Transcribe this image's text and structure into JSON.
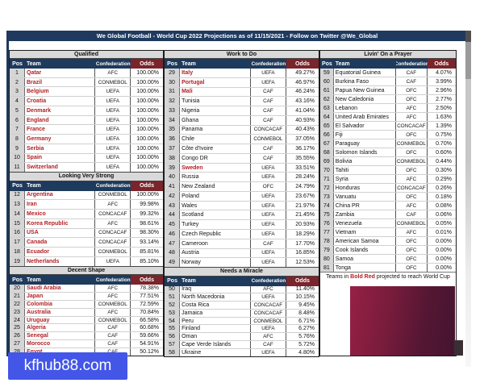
{
  "title_bar": {
    "text": "We Global Football - World Cup 2022 Projections as of 11/15/2021 - Follow on Twitter @We_Global"
  },
  "table_headers": {
    "pos": "Pos",
    "team": "Team",
    "confederation": "Confederation",
    "odds": "Odds"
  },
  "note": {
    "prefix": "Teams in",
    "highlight": "Bold Red",
    "suffix": "projected to reach World Cup"
  },
  "watermark": {
    "text": "kfhub88.com"
  },
  "colors": {
    "header_navy": "#1e3a5c",
    "odds_header_red": "#7a242b",
    "projected_team_red": "#b32025",
    "section_gray": "#d9d9d9",
    "watermark_blue": "#4356e8"
  },
  "tables": {
    "qualified": {
      "title": "Qualified",
      "rows": [
        {
          "pos": 1,
          "team": "Qatar",
          "confederation": "AFC",
          "odds": "100.00%",
          "projected": true
        },
        {
          "pos": 2,
          "team": "Brazil",
          "confederation": "CONMEBOL",
          "odds": "100.00%",
          "projected": true
        },
        {
          "pos": 3,
          "team": "Belgium",
          "confederation": "UEFA",
          "odds": "100.00%",
          "projected": true
        },
        {
          "pos": 4,
          "team": "Croatia",
          "confederation": "UEFA",
          "odds": "100.00%",
          "projected": true
        },
        {
          "pos": 5,
          "team": "Denmark",
          "confederation": "UEFA",
          "odds": "100.00%",
          "projected": true
        },
        {
          "pos": 6,
          "team": "England",
          "confederation": "UEFA",
          "odds": "100.00%",
          "projected": true
        },
        {
          "pos": 7,
          "team": "France",
          "confederation": "UEFA",
          "odds": "100.00%",
          "projected": true
        },
        {
          "pos": 8,
          "team": "Germany",
          "confederation": "UEFA",
          "odds": "100.00%",
          "projected": true
        },
        {
          "pos": 9,
          "team": "Serbia",
          "confederation": "UEFA",
          "odds": "100.00%",
          "projected": true
        },
        {
          "pos": 10,
          "team": "Spain",
          "confederation": "UEFA",
          "odds": "100.00%",
          "projected": true
        },
        {
          "pos": 11,
          "team": "Switzerland",
          "confederation": "UEFA",
          "odds": "100.00%",
          "projected": true
        }
      ]
    },
    "looking_very_strong": {
      "title": "Looking Very Strong",
      "rows": [
        {
          "pos": 12,
          "team": "Argentina",
          "confederation": "CONMEBOL",
          "odds": "100.00%",
          "projected": true
        },
        {
          "pos": 13,
          "team": "Iran",
          "confederation": "AFC",
          "odds": "99.98%",
          "projected": true
        },
        {
          "pos": 14,
          "team": "Mexico",
          "confederation": "CONCACAF",
          "odds": "99.32%",
          "projected": true
        },
        {
          "pos": 15,
          "team": "Korea Republic",
          "confederation": "AFC",
          "odds": "98.61%",
          "projected": true
        },
        {
          "pos": 16,
          "team": "USA",
          "confederation": "CONCACAF",
          "odds": "98.30%",
          "projected": true
        },
        {
          "pos": 17,
          "team": "Canada",
          "confederation": "CONCACAF",
          "odds": "93.14%",
          "projected": true
        },
        {
          "pos": 18,
          "team": "Ecuador",
          "confederation": "CONMEBOL",
          "odds": "85.81%",
          "projected": true
        },
        {
          "pos": 19,
          "team": "Netherlands",
          "confederation": "UEFA",
          "odds": "85.10%",
          "projected": true
        }
      ]
    },
    "decent_shape": {
      "title": "Decent Shape",
      "rows": [
        {
          "pos": 20,
          "team": "Saudi Arabia",
          "confederation": "AFC",
          "odds": "78.38%",
          "projected": true
        },
        {
          "pos": 21,
          "team": "Japan",
          "confederation": "AFC",
          "odds": "77.51%",
          "projected": true
        },
        {
          "pos": 22,
          "team": "Colombia",
          "confederation": "CONMEBOL",
          "odds": "72.59%",
          "projected": true
        },
        {
          "pos": 23,
          "team": "Australia",
          "confederation": "AFC",
          "odds": "70.84%",
          "projected": true
        },
        {
          "pos": 24,
          "team": "Uruguay",
          "confederation": "CONMEBOL",
          "odds": "66.58%",
          "projected": true
        },
        {
          "pos": 25,
          "team": "Algeria",
          "confederation": "CAF",
          "odds": "60.68%",
          "projected": true
        },
        {
          "pos": 26,
          "team": "Senegal",
          "confederation": "CAF",
          "odds": "59.66%",
          "projected": true
        },
        {
          "pos": 27,
          "team": "Morocco",
          "confederation": "CAF",
          "odds": "54.91%",
          "projected": true
        },
        {
          "pos": 28,
          "team": "Egypt",
          "confederation": "CAF",
          "odds": "50.12%",
          "projected": true
        }
      ]
    },
    "work_to_do": {
      "title": "Work to Do",
      "rows": [
        {
          "pos": 29,
          "team": "Italy",
          "confederation": "UEFA",
          "odds": "49.27%",
          "projected": true
        },
        {
          "pos": 30,
          "team": "Portugal",
          "confederation": "UEFA",
          "odds": "46.97%",
          "projected": true
        },
        {
          "pos": 31,
          "team": "Mali",
          "confederation": "CAF",
          "odds": "46.24%",
          "projected": true
        },
        {
          "pos": 32,
          "team": "Tunisia",
          "confederation": "CAF",
          "odds": "43.16%",
          "projected": false
        },
        {
          "pos": 33,
          "team": "Nigeria",
          "confederation": "CAF",
          "odds": "41.04%",
          "projected": false
        },
        {
          "pos": 34,
          "team": "Ghana",
          "confederation": "CAF",
          "odds": "40.93%",
          "projected": false
        },
        {
          "pos": 35,
          "team": "Panama",
          "confederation": "CONCACAF",
          "odds": "40.43%",
          "projected": false
        },
        {
          "pos": 36,
          "team": "Chile",
          "confederation": "CONMEBOL",
          "odds": "37.05%",
          "projected": false
        },
        {
          "pos": 37,
          "team": "Côte d'Ivoire",
          "confederation": "CAF",
          "odds": "36.17%",
          "projected": false
        },
        {
          "pos": 38,
          "team": "Congo DR",
          "confederation": "CAF",
          "odds": "35.55%",
          "projected": false
        },
        {
          "pos": 39,
          "team": "Sweden",
          "confederation": "UEFA",
          "odds": "33.51%",
          "projected": true
        },
        {
          "pos": 40,
          "team": "Russia",
          "confederation": "UEFA",
          "odds": "28.24%",
          "projected": false
        },
        {
          "pos": 41,
          "team": "New Zealand",
          "confederation": "OFC",
          "odds": "24.79%",
          "projected": false
        },
        {
          "pos": 42,
          "team": "Poland",
          "confederation": "UEFA",
          "odds": "23.67%",
          "projected": false
        },
        {
          "pos": 43,
          "team": "Wales",
          "confederation": "UEFA",
          "odds": "21.97%",
          "projected": false
        },
        {
          "pos": 44,
          "team": "Scotland",
          "confederation": "UEFA",
          "odds": "21.45%",
          "projected": false
        },
        {
          "pos": 45,
          "team": "Turkey",
          "confederation": "UEFA",
          "odds": "20.93%",
          "projected": false
        },
        {
          "pos": 46,
          "team": "Czech Republic",
          "confederation": "UEFA",
          "odds": "18.29%",
          "projected": false
        },
        {
          "pos": 47,
          "team": "Cameroon",
          "confederation": "CAF",
          "odds": "17.70%",
          "projected": false
        },
        {
          "pos": 48,
          "team": "Austria",
          "confederation": "UEFA",
          "odds": "16.85%",
          "projected": false
        },
        {
          "pos": 49,
          "team": "Norway",
          "confederation": "UEFA",
          "odds": "12.53%",
          "projected": false
        }
      ]
    },
    "needs_a_miracle": {
      "title": "Needs a Miracle",
      "rows": [
        {
          "pos": 50,
          "team": "Iraq",
          "confederation": "AFC",
          "odds": "11.40%",
          "projected": false
        },
        {
          "pos": 51,
          "team": "North Macedonia",
          "confederation": "UEFA",
          "odds": "10.15%",
          "projected": false
        },
        {
          "pos": 52,
          "team": "Costa Rica",
          "confederation": "CONCACAF",
          "odds": "9.45%",
          "projected": false
        },
        {
          "pos": 53,
          "team": "Jamaica",
          "confederation": "CONCACAF",
          "odds": "8.48%",
          "projected": false
        },
        {
          "pos": 54,
          "team": "Peru",
          "confederation": "CONMEBOL",
          "odds": "6.71%",
          "projected": false
        },
        {
          "pos": 55,
          "team": "Finland",
          "confederation": "UEFA",
          "odds": "6.27%",
          "projected": false
        },
        {
          "pos": 56,
          "team": "Oman",
          "confederation": "AFC",
          "odds": "5.76%",
          "projected": false
        },
        {
          "pos": 57,
          "team": "Cape Verde Islands",
          "confederation": "CAF",
          "odds": "5.72%",
          "projected": false
        },
        {
          "pos": 58,
          "team": "Ukraine",
          "confederation": "UEFA",
          "odds": "4.80%",
          "projected": false
        }
      ]
    },
    "livin_on_a_prayer": {
      "title": "Livin' On a Prayer",
      "rows": [
        {
          "pos": 59,
          "team": "Equatorial Guinea",
          "confederation": "CAF",
          "odds": "4.07%",
          "projected": false
        },
        {
          "pos": 60,
          "team": "Burkina Faso",
          "confederation": "CAF",
          "odds": "3.99%",
          "projected": false
        },
        {
          "pos": 61,
          "team": "Papua New Guinea",
          "confederation": "OFC",
          "odds": "2.96%",
          "projected": false
        },
        {
          "pos": 62,
          "team": "New Caledonia",
          "confederation": "OFC",
          "odds": "2.77%",
          "projected": false
        },
        {
          "pos": 63,
          "team": "Lebanon",
          "confederation": "AFC",
          "odds": "2.50%",
          "projected": false
        },
        {
          "pos": 64,
          "team": "United Arab Emirates",
          "confederation": "AFC",
          "odds": "1.63%",
          "projected": false
        },
        {
          "pos": 65,
          "team": "El Salvador",
          "confederation": "CONCACAF",
          "odds": "1.39%",
          "projected": false
        },
        {
          "pos": 66,
          "team": "Fiji",
          "confederation": "OFC",
          "odds": "0.75%",
          "projected": false
        },
        {
          "pos": 67,
          "team": "Paraguay",
          "confederation": "CONMEBOL",
          "odds": "0.70%",
          "projected": false
        },
        {
          "pos": 68,
          "team": "Solomon Islands",
          "confederation": "OFC",
          "odds": "0.60%",
          "projected": false
        },
        {
          "pos": 69,
          "team": "Bolivia",
          "confederation": "CONMEBOL",
          "odds": "0.44%",
          "projected": false
        },
        {
          "pos": 70,
          "team": "Tahiti",
          "confederation": "OFC",
          "odds": "0.30%",
          "projected": false
        },
        {
          "pos": 71,
          "team": "Syria",
          "confederation": "AFC",
          "odds": "0.29%",
          "projected": false
        },
        {
          "pos": 72,
          "team": "Honduras",
          "confederation": "CONCACAF",
          "odds": "0.26%",
          "projected": false
        },
        {
          "pos": 73,
          "team": "Vanuatu",
          "confederation": "OFC",
          "odds": "0.18%",
          "projected": false
        },
        {
          "pos": 74,
          "team": "China PR",
          "confederation": "AFC",
          "odds": "0.08%",
          "projected": false
        },
        {
          "pos": 75,
          "team": "Zambia",
          "confederation": "CAF",
          "odds": "0.06%",
          "projected": false
        },
        {
          "pos": 76,
          "team": "Venezuela",
          "confederation": "CONMEBOL",
          "odds": "0.05%",
          "projected": false
        },
        {
          "pos": 77,
          "team": "Vietnam",
          "confederation": "AFC",
          "odds": "0.01%",
          "projected": false
        },
        {
          "pos": 78,
          "team": "American Samoa",
          "confederation": "OFC",
          "odds": "0.00%",
          "projected": false
        },
        {
          "pos": 79,
          "team": "Cook Islands",
          "confederation": "OFC",
          "odds": "0.00%",
          "projected": false
        },
        {
          "pos": 80,
          "team": "Samoa",
          "confederation": "OFC",
          "odds": "0.00%",
          "projected": false
        },
        {
          "pos": 81,
          "team": "Tonga",
          "confederation": "OFC",
          "odds": "0.00%",
          "projected": false
        }
      ]
    }
  }
}
